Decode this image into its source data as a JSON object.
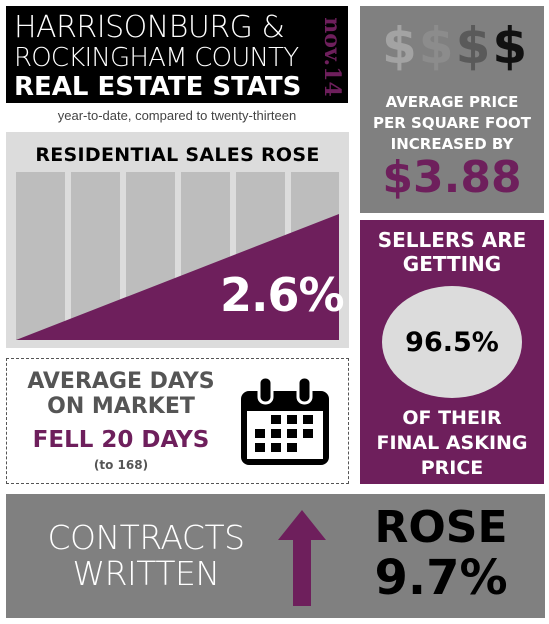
{
  "header": {
    "line1": "HARRISONBURG &",
    "line2": "ROCKINGHAM COUNTY",
    "line3": "REAL ESTATE STATS",
    "date": "nov.14",
    "subtitle": "year-to-date, compared to twenty-thirteen"
  },
  "residential": {
    "heading": "RESIDENTIAL SALES ROSE",
    "value": "2.6%"
  },
  "price_per_sqft": {
    "dollars": [
      "$",
      "$",
      "$",
      "$"
    ],
    "line1": "AVERAGE PRICE",
    "line2": "PER SQUARE FOOT",
    "line3": "INCREASED BY",
    "value": "$3.88"
  },
  "sellers": {
    "line1": "SELLERS ARE",
    "line2": "GETTING",
    "value": "96.5%",
    "line3": "OF THEIR",
    "line4": "FINAL ASKING",
    "line5": "PRICE"
  },
  "days_on_market": {
    "line1": "AVERAGE DAYS",
    "line2": "ON MARKET",
    "change": "FELL 20 DAYS",
    "note": "(to 168)"
  },
  "contracts": {
    "line1": "CONTRACTS",
    "line2": "WRITTEN",
    "rose_label": "ROSE",
    "value": "9.7%"
  },
  "colors": {
    "purple": "#6e1f5c",
    "dark_gray": "#808080",
    "light_gray": "#dcdcdc",
    "black": "#000000"
  },
  "icons": [
    "dollar-sign-icon",
    "calendar-icon",
    "up-arrow-icon"
  ]
}
